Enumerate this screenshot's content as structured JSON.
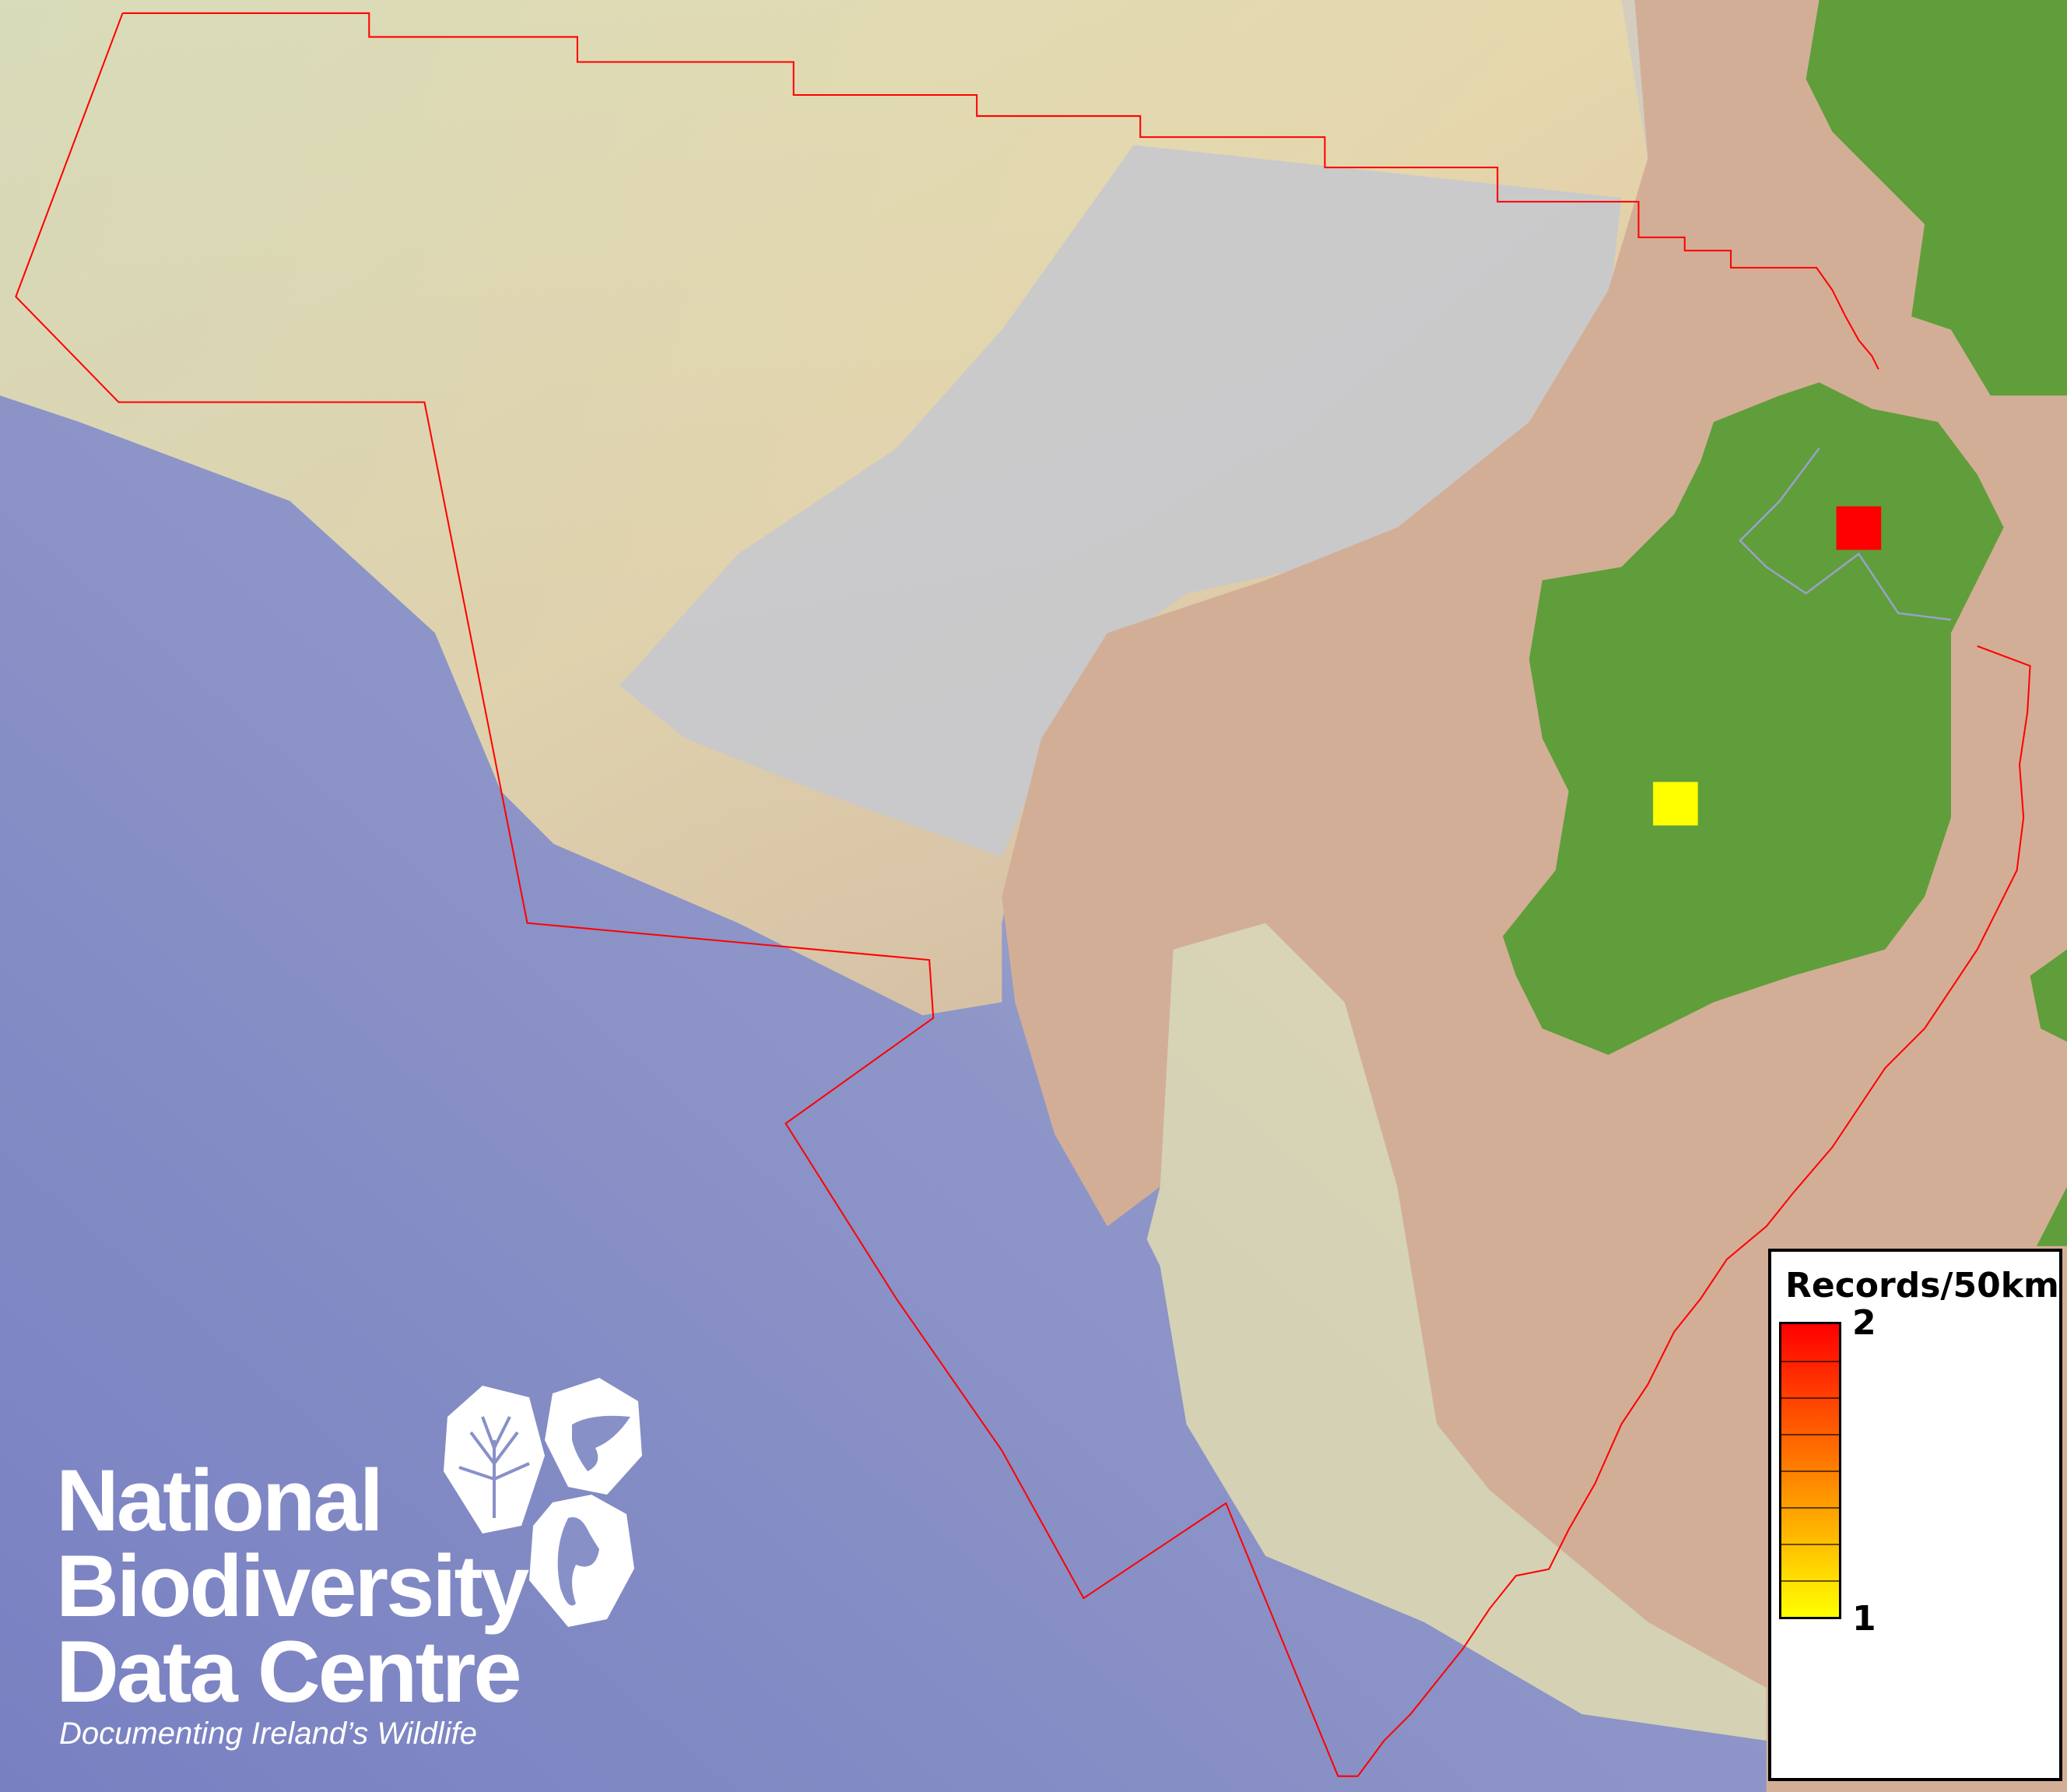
{
  "map": {
    "colors": {
      "deep_ocean": "#7a84c4",
      "slope": "#b8bcd0",
      "shelf": "#e4e2b0",
      "shallow": "#d2ad95",
      "land": "#5f9e3a",
      "boundary": "#ff0000"
    },
    "grid_cells": [
      {
        "location": "north",
        "records": 2,
        "color": "#ff0000"
      },
      {
        "location": "west",
        "records": 1,
        "color": "#ffff00"
      }
    ]
  },
  "legend": {
    "title": "Records/50km",
    "max_label": "2",
    "min_label": "1",
    "color_min": "#ffff00",
    "color_max": "#ff0000"
  },
  "logo": {
    "line1": "National",
    "line2": "Biodiversity",
    "line3": "Data Centre",
    "tagline": "Documenting Ireland’s Wildlife",
    "icons": [
      "tree-icon",
      "butterfly-icon",
      "seahorse-icon"
    ]
  }
}
